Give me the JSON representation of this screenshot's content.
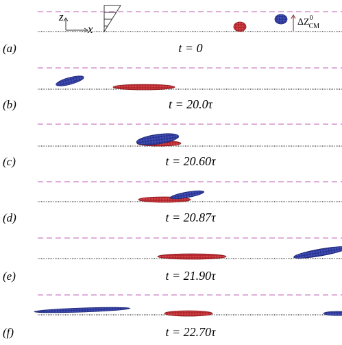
{
  "axes_icon": {
    "z": "z",
    "x": "x"
  },
  "offset_label": {
    "main": "ΔZ",
    "sup": "0",
    "sub": "CM"
  },
  "panels": [
    {
      "label": "(a)",
      "time": "t = 0"
    },
    {
      "label": "(b)",
      "time": "t = 20.0τ"
    },
    {
      "label": "(c)",
      "time": "t = 20.60τ"
    },
    {
      "label": "(d)",
      "time": "t = 20.87τ"
    },
    {
      "label": "(e)",
      "time": "t = 21.90τ"
    },
    {
      "label": "(f)",
      "time": "t = 22.70τ"
    }
  ]
}
